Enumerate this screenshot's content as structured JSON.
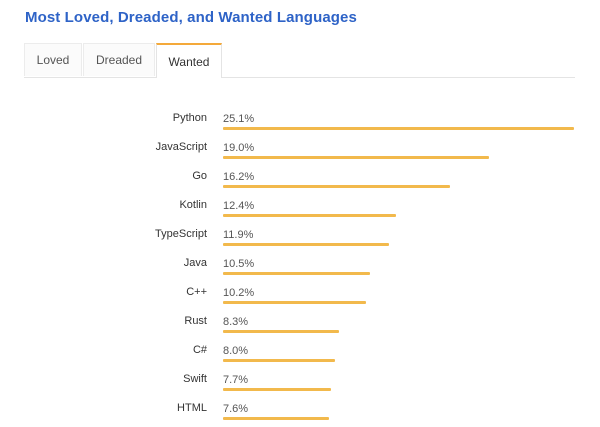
{
  "title": "Most Loved, Dreaded, and Wanted Languages",
  "tabs": [
    {
      "label": "Loved",
      "active": false
    },
    {
      "label": "Dreaded",
      "active": false
    },
    {
      "label": "Wanted",
      "active": true
    }
  ],
  "colors": {
    "title": "#2e63c7",
    "bar": "#f2b94c",
    "active_tab_accent": "#f4a93a"
  },
  "chart_data": {
    "type": "bar",
    "orientation": "horizontal",
    "title": "Most Loved, Dreaded, and Wanted Languages",
    "subtitle": "Wanted",
    "xlabel": "",
    "ylabel": "",
    "categories": [
      "Python",
      "JavaScript",
      "Go",
      "Kotlin",
      "TypeScript",
      "Java",
      "C++",
      "Rust",
      "C#",
      "Swift",
      "HTML"
    ],
    "values": [
      25.1,
      19.0,
      16.2,
      12.4,
      11.9,
      10.5,
      10.2,
      8.3,
      8.0,
      7.7,
      7.6
    ],
    "value_labels": [
      "25.1%",
      "19.0%",
      "16.2%",
      "12.4%",
      "11.9%",
      "10.5%",
      "10.2%",
      "8.3%",
      "8.0%",
      "7.7%",
      "7.6%"
    ],
    "unit": "%",
    "grid": false,
    "legend": "none"
  }
}
